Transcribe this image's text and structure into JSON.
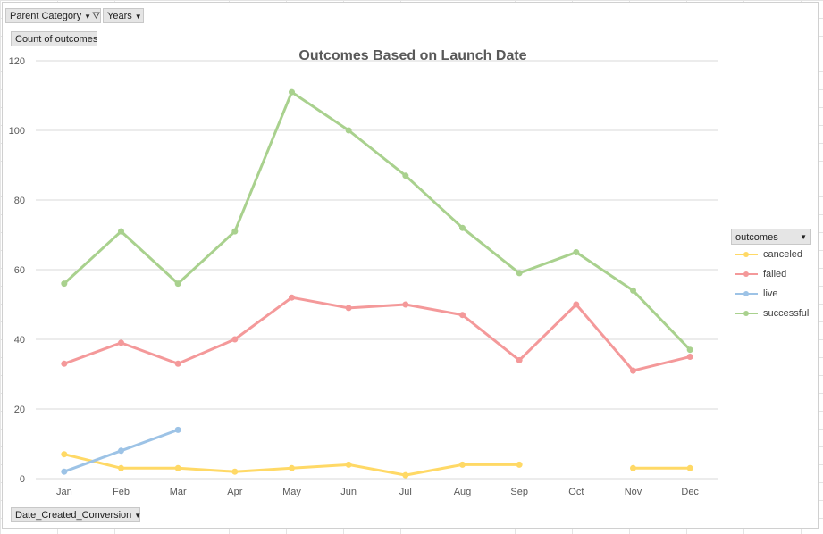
{
  "pivot": {
    "filter_field_1": "Parent Category",
    "filter_field_2": "Years",
    "value_field": "Count of outcomes",
    "axis_field": "Date_Created_Conversion",
    "legend_field": "outcomes"
  },
  "chart_data": {
    "type": "line",
    "title": "Outcomes Based on Launch Date",
    "xlabel": "",
    "ylabel": "",
    "categories": [
      "Jan",
      "Feb",
      "Mar",
      "Apr",
      "May",
      "Jun",
      "Jul",
      "Aug",
      "Sep",
      "Oct",
      "Nov",
      "Dec"
    ],
    "ylim": [
      0,
      120
    ],
    "yticks": [
      0,
      20,
      40,
      60,
      80,
      100,
      120
    ],
    "grid": true,
    "legend_position": "right",
    "series": [
      {
        "name": "canceled",
        "color": "#ffd966",
        "values": [
          7,
          3,
          3,
          2,
          3,
          4,
          1,
          4,
          4,
          null,
          3,
          3
        ]
      },
      {
        "name": "failed",
        "color": "#f4999a",
        "values": [
          33,
          39,
          33,
          40,
          52,
          49,
          50,
          47,
          34,
          50,
          31,
          35
        ]
      },
      {
        "name": "live",
        "color": "#9dc3e6",
        "values": [
          2,
          8,
          14,
          null,
          null,
          null,
          null,
          null,
          null,
          null,
          null,
          null
        ]
      },
      {
        "name": "successful",
        "color": "#a9d18e",
        "values": [
          56,
          71,
          56,
          71,
          111,
          100,
          87,
          72,
          59,
          65,
          54,
          37
        ]
      }
    ]
  }
}
